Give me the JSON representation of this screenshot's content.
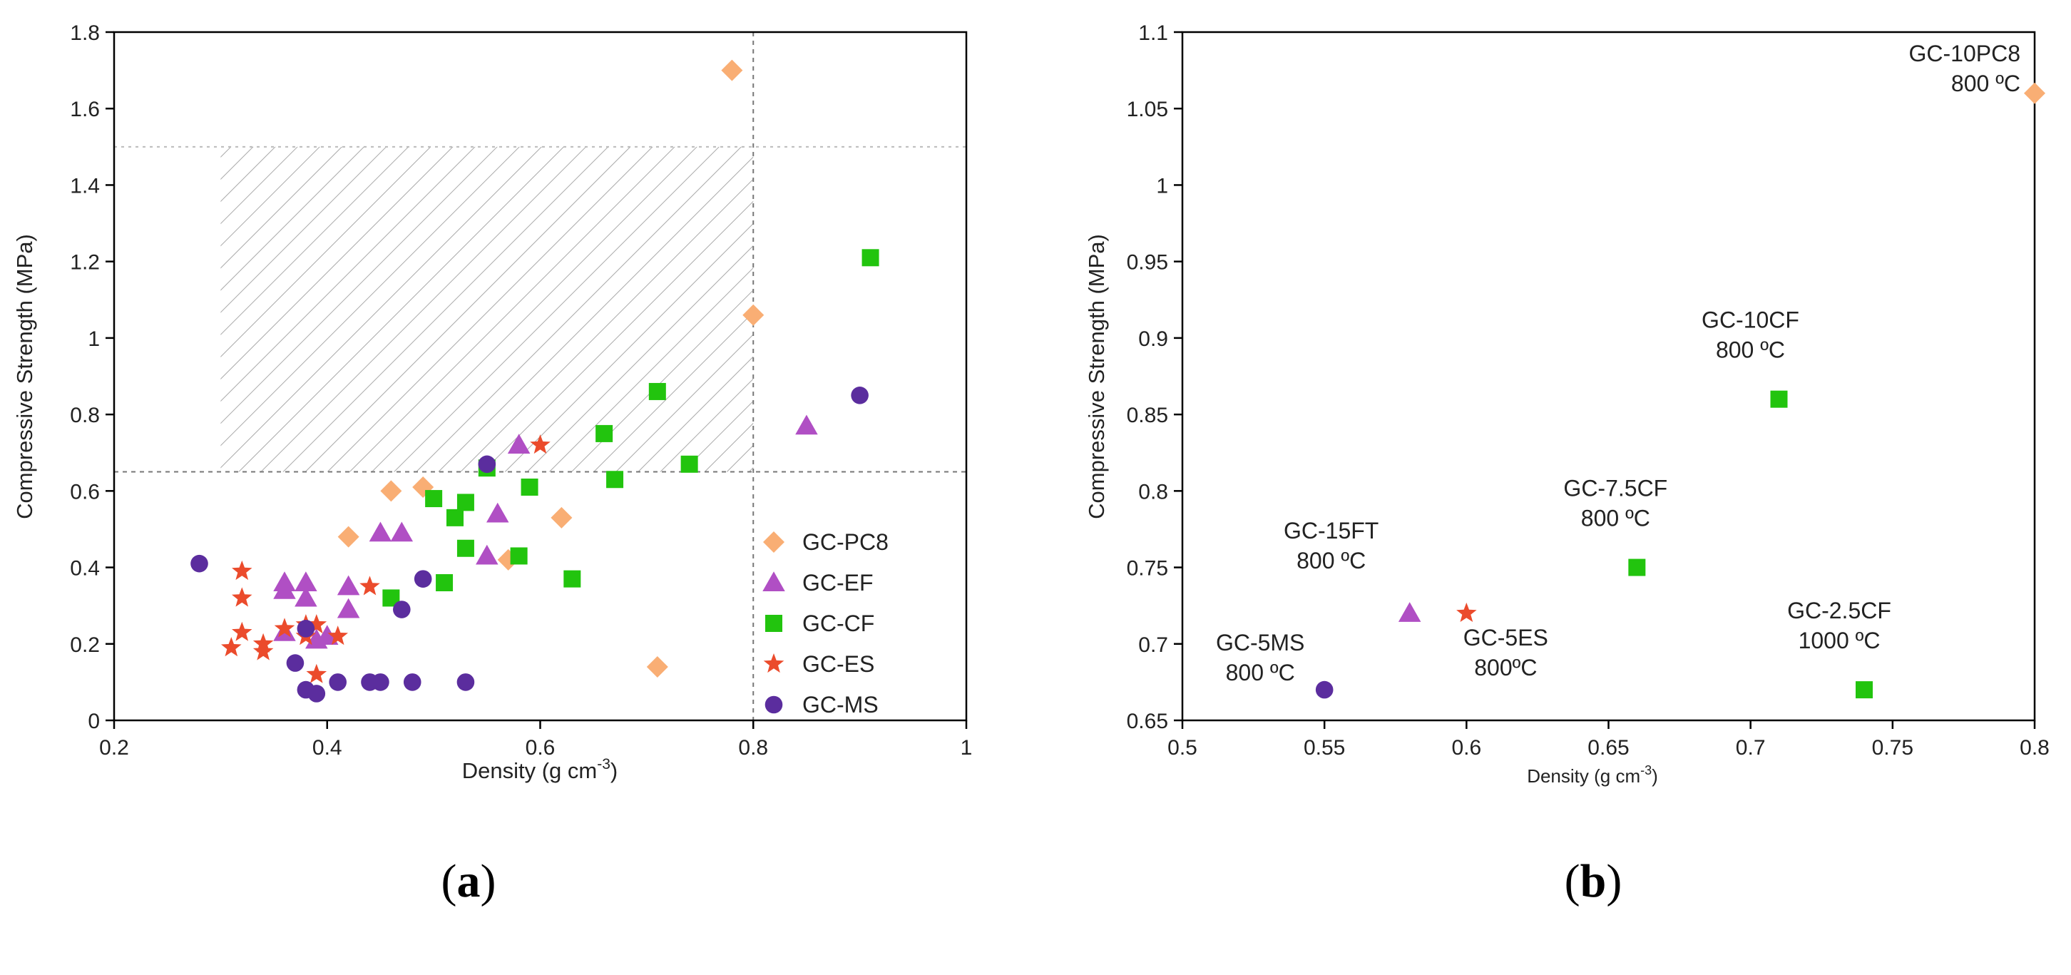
{
  "colors": {
    "GC-PC8": "#F9AE74",
    "GC-EF": "#B04FC4",
    "GC-CF": "#22C40E",
    "GC-ES": "#EB4B2C",
    "GC-MS": "#5B2D9E"
  },
  "chart_data": [
    {
      "type": "scatter",
      "panel_label": {
        "open": "(",
        "letter": "a",
        "close": ")"
      },
      "xlabel": "Density (g cm",
      "xlabel_sup": "-3",
      "xlabel_close": ")",
      "ylabel": "Compressive Strength  (MPa)",
      "xlim": [
        0.2,
        1.0
      ],
      "ylim": [
        0,
        1.8
      ],
      "xticks": [
        "0.2",
        "0.4",
        "0.6",
        "0.8",
        "1"
      ],
      "yticks": [
        "0",
        "0.2",
        "0.4",
        "0.6",
        "0.8",
        "1",
        "1.2",
        "1.4",
        "1.6",
        "1.8"
      ],
      "reference_lines": {
        "x": 0.8,
        "y_low": 0.65,
        "y_high": 1.5
      },
      "hatched_region": {
        "x": [
          0.3,
          0.8
        ],
        "y": [
          0.65,
          1.5
        ]
      },
      "legend": [
        "GC-PC8",
        "GC-EF",
        "GC-CF",
        "GC-ES",
        "GC-MS"
      ],
      "series": [
        {
          "name": "GC-PC8",
          "marker": "diamond",
          "points": [
            [
              0.78,
              1.7
            ],
            [
              0.8,
              1.06
            ],
            [
              0.46,
              0.6
            ],
            [
              0.49,
              0.61
            ],
            [
              0.42,
              0.48
            ],
            [
              0.62,
              0.53
            ],
            [
              0.57,
              0.42
            ],
            [
              0.71,
              0.14
            ]
          ]
        },
        {
          "name": "GC-EF",
          "marker": "triangle",
          "points": [
            [
              0.36,
              0.36
            ],
            [
              0.36,
              0.34
            ],
            [
              0.38,
              0.36
            ],
            [
              0.38,
              0.32
            ],
            [
              0.42,
              0.35
            ],
            [
              0.42,
              0.29
            ],
            [
              0.45,
              0.49
            ],
            [
              0.47,
              0.49
            ],
            [
              0.36,
              0.23
            ],
            [
              0.39,
              0.21
            ],
            [
              0.4,
              0.22
            ],
            [
              0.55,
              0.43
            ],
            [
              0.56,
              0.54
            ],
            [
              0.58,
              0.72
            ],
            [
              0.85,
              0.77
            ]
          ]
        },
        {
          "name": "GC-CF",
          "marker": "square",
          "points": [
            [
              0.46,
              0.32
            ],
            [
              0.5,
              0.58
            ],
            [
              0.51,
              0.36
            ],
            [
              0.52,
              0.53
            ],
            [
              0.53,
              0.57
            ],
            [
              0.53,
              0.45
            ],
            [
              0.55,
              0.66
            ],
            [
              0.58,
              0.43
            ],
            [
              0.59,
              0.61
            ],
            [
              0.63,
              0.37
            ],
            [
              0.66,
              0.75
            ],
            [
              0.67,
              0.63
            ],
            [
              0.71,
              0.86
            ],
            [
              0.74,
              0.67
            ],
            [
              0.91,
              1.21
            ]
          ]
        },
        {
          "name": "GC-ES",
          "marker": "star",
          "points": [
            [
              0.31,
              0.19
            ],
            [
              0.32,
              0.23
            ],
            [
              0.32,
              0.32
            ],
            [
              0.32,
              0.39
            ],
            [
              0.34,
              0.2
            ],
            [
              0.34,
              0.18
            ],
            [
              0.36,
              0.24
            ],
            [
              0.38,
              0.22
            ],
            [
              0.38,
              0.25
            ],
            [
              0.39,
              0.25
            ],
            [
              0.39,
              0.12
            ],
            [
              0.41,
              0.22
            ],
            [
              0.44,
              0.35
            ],
            [
              0.6,
              0.72
            ]
          ]
        },
        {
          "name": "GC-MS",
          "marker": "circle",
          "points": [
            [
              0.28,
              0.41
            ],
            [
              0.37,
              0.15
            ],
            [
              0.38,
              0.24
            ],
            [
              0.38,
              0.08
            ],
            [
              0.39,
              0.07
            ],
            [
              0.41,
              0.1
            ],
            [
              0.44,
              0.1
            ],
            [
              0.45,
              0.1
            ],
            [
              0.47,
              0.29
            ],
            [
              0.48,
              0.1
            ],
            [
              0.49,
              0.37
            ],
            [
              0.53,
              0.1
            ],
            [
              0.55,
              0.67
            ],
            [
              0.9,
              0.85
            ]
          ]
        }
      ]
    },
    {
      "type": "scatter",
      "panel_label": {
        "open": "(",
        "letter": "b",
        "close": ")"
      },
      "xlabel": "Density (g cm",
      "xlabel_sup": "-3",
      "xlabel_close": ")",
      "ylabel": "Compressive Strength  (MPa)",
      "xlim": [
        0.5,
        0.8
      ],
      "ylim": [
        0.65,
        1.1
      ],
      "xticks": [
        "0.5",
        "0.55",
        "0.6",
        "0.65",
        "0.7",
        "0.75",
        "0.8"
      ],
      "yticks": [
        "0.65",
        "0.7",
        "0.75",
        "0.8",
        "0.85",
        "0.9",
        "0.95",
        "1",
        "1.05",
        "1.1"
      ],
      "points": [
        {
          "series": "GC-MS",
          "marker": "circle",
          "x": 0.55,
          "y": 0.67,
          "label": [
            "GC-5MS",
            "800 ºC"
          ]
        },
        {
          "series": "GC-EF",
          "marker": "triangle",
          "x": 0.58,
          "y": 0.72,
          "label": [
            "GC-15FT",
            "800 ºC"
          ]
        },
        {
          "series": "GC-ES",
          "marker": "star",
          "x": 0.6,
          "y": 0.72,
          "label": [
            "GC-5ES",
            "800ºC"
          ]
        },
        {
          "series": "GC-CF",
          "marker": "square",
          "x": 0.66,
          "y": 0.75,
          "label": [
            "GC-7.5CF",
            "800 ºC"
          ]
        },
        {
          "series": "GC-CF",
          "marker": "square",
          "x": 0.71,
          "y": 0.86,
          "label": [
            "GC-10CF",
            "800 ºC"
          ]
        },
        {
          "series": "GC-CF",
          "marker": "square",
          "x": 0.74,
          "y": 0.67,
          "label": [
            "GC-2.5CF",
            "1000 ºC"
          ]
        },
        {
          "series": "GC-PC8",
          "marker": "diamond",
          "x": 0.8,
          "y": 1.06,
          "label": [
            "GC-10PC8",
            "800 ºC"
          ]
        }
      ]
    }
  ]
}
